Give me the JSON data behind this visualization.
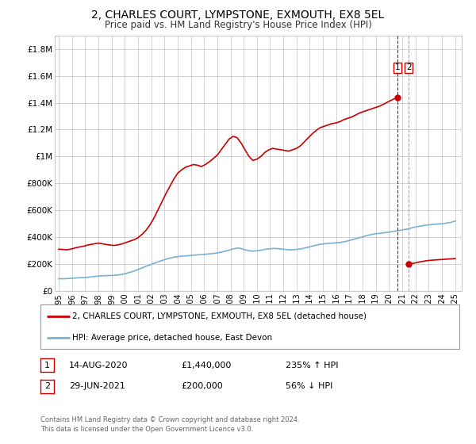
{
  "title": "2, CHARLES COURT, LYMPSTONE, EXMOUTH, EX8 5EL",
  "subtitle": "Price paid vs. HM Land Registry's House Price Index (HPI)",
  "legend_line1": "2, CHARLES COURT, LYMPSTONE, EXMOUTH, EX8 5EL (detached house)",
  "legend_line2": "HPI: Average price, detached house, East Devon",
  "annotation1_date": "14-AUG-2020",
  "annotation1_price": "£1,440,000",
  "annotation1_hpi": "235% ↑ HPI",
  "annotation2_date": "29-JUN-2021",
  "annotation2_price": "£200,000",
  "annotation2_hpi": "56% ↓ HPI",
  "footer": "Contains HM Land Registry data © Crown copyright and database right 2024.\nThis data is licensed under the Open Government Licence v3.0.",
  "red_color": "#cc0000",
  "blue_color": "#7ab0d4",
  "box_color": "#cc0000",
  "ylim": [
    0,
    1900000
  ],
  "xlim_start": 1994.7,
  "xlim_end": 2025.5,
  "point1_x": 2020.617,
  "point1_y": 1440000,
  "point2_x": 2021.494,
  "point2_y": 200000,
  "red_x": [
    1995.0,
    1995.3,
    1995.6,
    1995.9,
    1996.2,
    1996.5,
    1996.8,
    1997.1,
    1997.4,
    1997.7,
    1998.0,
    1998.3,
    1998.6,
    1998.9,
    1999.2,
    1999.5,
    1999.8,
    2000.1,
    2000.4,
    2000.7,
    2001.0,
    2001.3,
    2001.6,
    2001.9,
    2002.2,
    2002.5,
    2002.8,
    2003.1,
    2003.4,
    2003.7,
    2004.0,
    2004.3,
    2004.6,
    2004.9,
    2005.2,
    2005.5,
    2005.8,
    2006.1,
    2006.4,
    2006.7,
    2007.0,
    2007.3,
    2007.6,
    2007.9,
    2008.2,
    2008.5,
    2008.8,
    2009.1,
    2009.4,
    2009.7,
    2010.0,
    2010.3,
    2010.6,
    2010.9,
    2011.2,
    2011.5,
    2011.8,
    2012.1,
    2012.4,
    2012.7,
    2013.0,
    2013.3,
    2013.6,
    2013.9,
    2014.2,
    2014.5,
    2014.8,
    2015.1,
    2015.4,
    2015.7,
    2016.0,
    2016.3,
    2016.6,
    2016.9,
    2017.2,
    2017.5,
    2017.8,
    2018.1,
    2018.4,
    2018.7,
    2019.0,
    2019.3,
    2019.6,
    2019.9,
    2020.2,
    2020.617
  ],
  "red_y": [
    310000,
    308000,
    305000,
    310000,
    318000,
    325000,
    330000,
    338000,
    345000,
    350000,
    355000,
    350000,
    345000,
    340000,
    338000,
    342000,
    350000,
    360000,
    370000,
    380000,
    395000,
    420000,
    450000,
    490000,
    540000,
    600000,
    660000,
    720000,
    775000,
    830000,
    875000,
    900000,
    920000,
    930000,
    940000,
    935000,
    925000,
    940000,
    960000,
    985000,
    1010000,
    1050000,
    1090000,
    1130000,
    1150000,
    1140000,
    1100000,
    1050000,
    1000000,
    970000,
    980000,
    1000000,
    1030000,
    1050000,
    1060000,
    1055000,
    1050000,
    1045000,
    1040000,
    1050000,
    1060000,
    1080000,
    1110000,
    1140000,
    1170000,
    1195000,
    1215000,
    1225000,
    1235000,
    1245000,
    1250000,
    1260000,
    1275000,
    1285000,
    1295000,
    1310000,
    1325000,
    1335000,
    1345000,
    1355000,
    1365000,
    1375000,
    1390000,
    1405000,
    1420000,
    1440000
  ],
  "red_x2": [
    2021.494,
    2021.7,
    2022.0,
    2022.3,
    2022.6,
    2022.9,
    2023.2,
    2023.5,
    2023.8,
    2024.1,
    2024.4,
    2024.7,
    2025.0
  ],
  "red_y2": [
    200000,
    202000,
    208000,
    215000,
    220000,
    225000,
    228000,
    230000,
    232000,
    234000,
    236000,
    238000,
    240000
  ],
  "blue_x": [
    1995.0,
    1995.3,
    1995.6,
    1995.9,
    1996.2,
    1996.5,
    1996.8,
    1997.1,
    1997.4,
    1997.7,
    1998.0,
    1998.3,
    1998.6,
    1998.9,
    1999.2,
    1999.5,
    1999.8,
    2000.1,
    2000.4,
    2000.7,
    2001.0,
    2001.3,
    2001.6,
    2001.9,
    2002.2,
    2002.5,
    2002.8,
    2003.1,
    2003.4,
    2003.7,
    2004.0,
    2004.3,
    2004.6,
    2004.9,
    2005.2,
    2005.5,
    2005.8,
    2006.1,
    2006.4,
    2006.7,
    2007.0,
    2007.3,
    2007.6,
    2007.9,
    2008.2,
    2008.5,
    2008.8,
    2009.1,
    2009.4,
    2009.7,
    2010.0,
    2010.3,
    2010.6,
    2010.9,
    2011.2,
    2011.5,
    2011.8,
    2012.1,
    2012.4,
    2012.7,
    2013.0,
    2013.3,
    2013.6,
    2013.9,
    2014.2,
    2014.5,
    2014.8,
    2015.1,
    2015.4,
    2015.7,
    2016.0,
    2016.3,
    2016.6,
    2016.9,
    2017.2,
    2017.5,
    2017.8,
    2018.1,
    2018.4,
    2018.7,
    2019.0,
    2019.3,
    2019.6,
    2019.9,
    2020.2,
    2020.5,
    2020.8,
    2021.1,
    2021.4,
    2021.7,
    2022.0,
    2022.3,
    2022.6,
    2022.9,
    2023.2,
    2023.5,
    2023.8,
    2024.1,
    2024.4,
    2024.7,
    2025.0
  ],
  "blue_y": [
    90000,
    90000,
    91000,
    93000,
    95000,
    97000,
    98000,
    100000,
    103000,
    107000,
    110000,
    112000,
    113000,
    114000,
    115000,
    118000,
    123000,
    130000,
    138000,
    147000,
    158000,
    170000,
    182000,
    193000,
    204000,
    215000,
    225000,
    235000,
    243000,
    250000,
    255000,
    258000,
    260000,
    262000,
    265000,
    268000,
    270000,
    272000,
    275000,
    278000,
    282000,
    288000,
    295000,
    303000,
    312000,
    318000,
    315000,
    305000,
    298000,
    295000,
    298000,
    302000,
    308000,
    312000,
    315000,
    315000,
    312000,
    308000,
    305000,
    305000,
    308000,
    312000,
    318000,
    325000,
    333000,
    340000,
    346000,
    350000,
    353000,
    355000,
    357000,
    360000,
    365000,
    372000,
    380000,
    388000,
    396000,
    405000,
    413000,
    420000,
    425000,
    428000,
    432000,
    436000,
    440000,
    445000,
    450000,
    455000,
    460000,
    468000,
    475000,
    480000,
    485000,
    490000,
    493000,
    495000,
    498000,
    500000,
    505000,
    510000,
    520000
  ],
  "xticks": [
    1995,
    1996,
    1997,
    1998,
    1999,
    2000,
    2001,
    2002,
    2003,
    2004,
    2005,
    2006,
    2007,
    2008,
    2009,
    2010,
    2011,
    2012,
    2013,
    2014,
    2015,
    2016,
    2017,
    2018,
    2019,
    2020,
    2021,
    2022,
    2023,
    2024,
    2025
  ],
  "yticks": [
    0,
    200000,
    400000,
    600000,
    800000,
    1000000,
    1200000,
    1400000,
    1600000,
    1800000
  ],
  "ytick_labels": [
    "£0",
    "£200K",
    "£400K",
    "£600K",
    "£800K",
    "£1M",
    "£1.2M",
    "£1.4M",
    "£1.6M",
    "£1.8M"
  ]
}
